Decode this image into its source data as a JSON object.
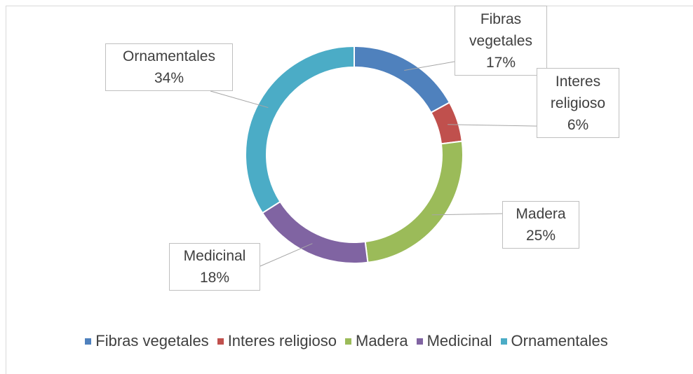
{
  "chart_data": {
    "type": "donut",
    "categories": [
      "Fibras vegetales",
      "Interes religioso",
      "Madera",
      "Medicinal",
      "Ornamentales"
    ],
    "values": [
      17,
      6,
      25,
      18,
      34
    ],
    "value_labels": [
      "17%",
      "6%",
      "25%",
      "18%",
      "34%"
    ],
    "colors": [
      "#4f81bd",
      "#c0504d",
      "#9bbb59",
      "#8064a2",
      "#4bacc6"
    ],
    "legend": "bottom"
  }
}
